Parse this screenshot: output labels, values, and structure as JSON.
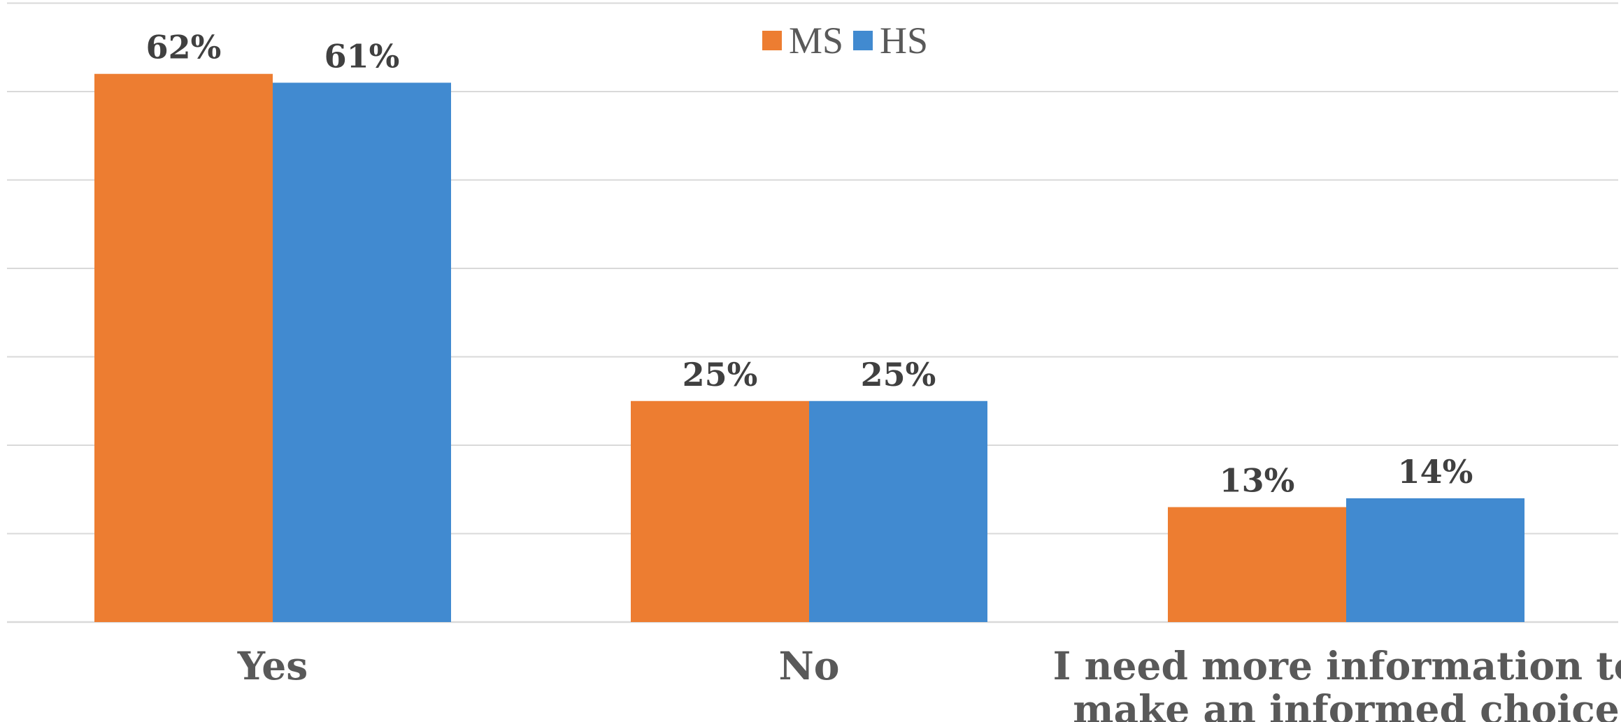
{
  "chart_data": {
    "type": "bar",
    "title": "",
    "xlabel": "",
    "ylabel": "",
    "ylim": [
      0,
      70
    ],
    "gridlines": [
      0,
      10,
      20,
      30,
      40,
      50,
      60,
      70
    ],
    "grid": true,
    "legend_position": "top-center",
    "categories": [
      [
        "Yes"
      ],
      [
        "No"
      ],
      [
        "I need more information to",
        "make an informed choice"
      ]
    ],
    "series": [
      {
        "name": "MS",
        "color": "#ED7D31",
        "values": [
          62,
          25,
          13
        ],
        "labels": [
          "62%",
          "25%",
          "13%"
        ]
      },
      {
        "name": "HS",
        "color": "#418AD0",
        "values": [
          61,
          25,
          14
        ],
        "labels": [
          "61%",
          "25%",
          "14%"
        ]
      }
    ]
  }
}
